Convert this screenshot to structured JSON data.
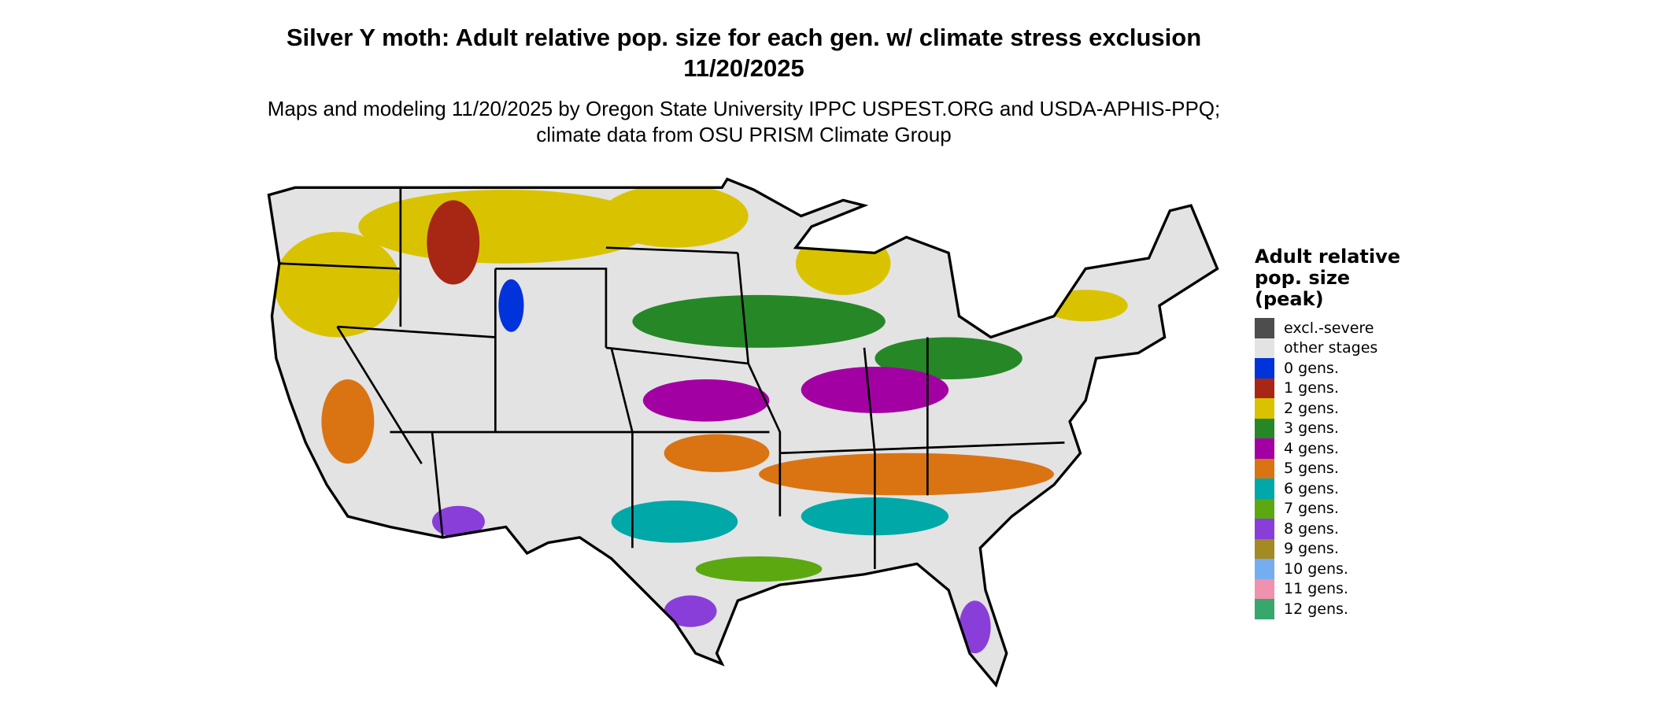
{
  "title": "Silver Y moth: Adult relative pop. size for each gen. w/ climate stress exclusion 11/20/2025",
  "subtitle": "Maps and modeling 11/20/2025 by Oregon State University IPPC USPEST.ORG and USDA-APHIS-PPQ; climate data from OSU PRISM Climate Group",
  "map": {
    "region": "contiguous United States",
    "background_color": "#e3e3e3",
    "border_color": "#000000"
  },
  "legend": {
    "title": "Adult relative pop. size (peak)",
    "items": [
      {
        "label": "excl.-severe",
        "color": "#4d4d4d"
      },
      {
        "label": "other stages",
        "color": "#e3e3e3"
      },
      {
        "label": "0 gens.",
        "color": "#0033d9"
      },
      {
        "label": "1 gens.",
        "color": "#a82614"
      },
      {
        "label": "2 gens.",
        "color": "#d9c300"
      },
      {
        "label": "3 gens.",
        "color": "#268726"
      },
      {
        "label": "4 gens.",
        "color": "#a300a3"
      },
      {
        "label": "5 gens.",
        "color": "#da7413"
      },
      {
        "label": "6 gens.",
        "color": "#00a8a8"
      },
      {
        "label": "7 gens.",
        "color": "#5ca810"
      },
      {
        "label": "8 gens.",
        "color": "#8a3ed9"
      },
      {
        "label": "9 gens.",
        "color": "#a38a22"
      },
      {
        "label": "10 gens.",
        "color": "#75aef0"
      },
      {
        "label": "11 gens.",
        "color": "#f091ae"
      },
      {
        "label": "12 gens.",
        "color": "#36a86b"
      }
    ]
  }
}
